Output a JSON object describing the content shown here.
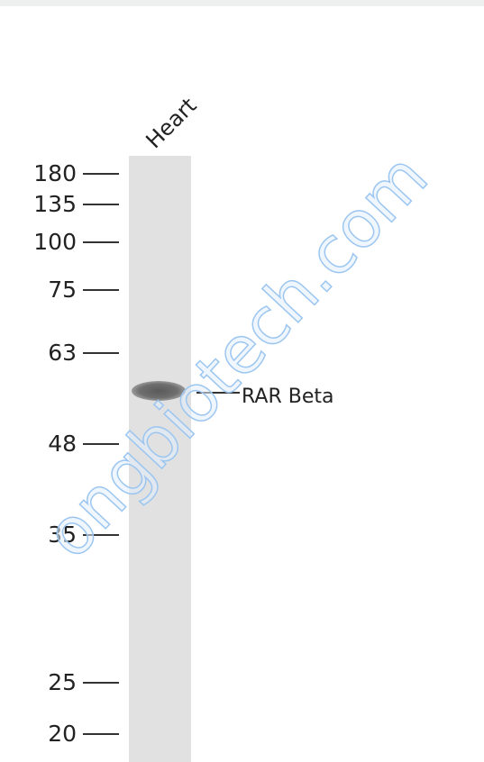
{
  "lane_label": "Heart",
  "markers": [
    "180",
    "135",
    "100",
    "75",
    "63",
    "48",
    "35",
    "25",
    "20"
  ],
  "band_label": "RAR Beta",
  "watermark": "ongbiotech.com"
}
